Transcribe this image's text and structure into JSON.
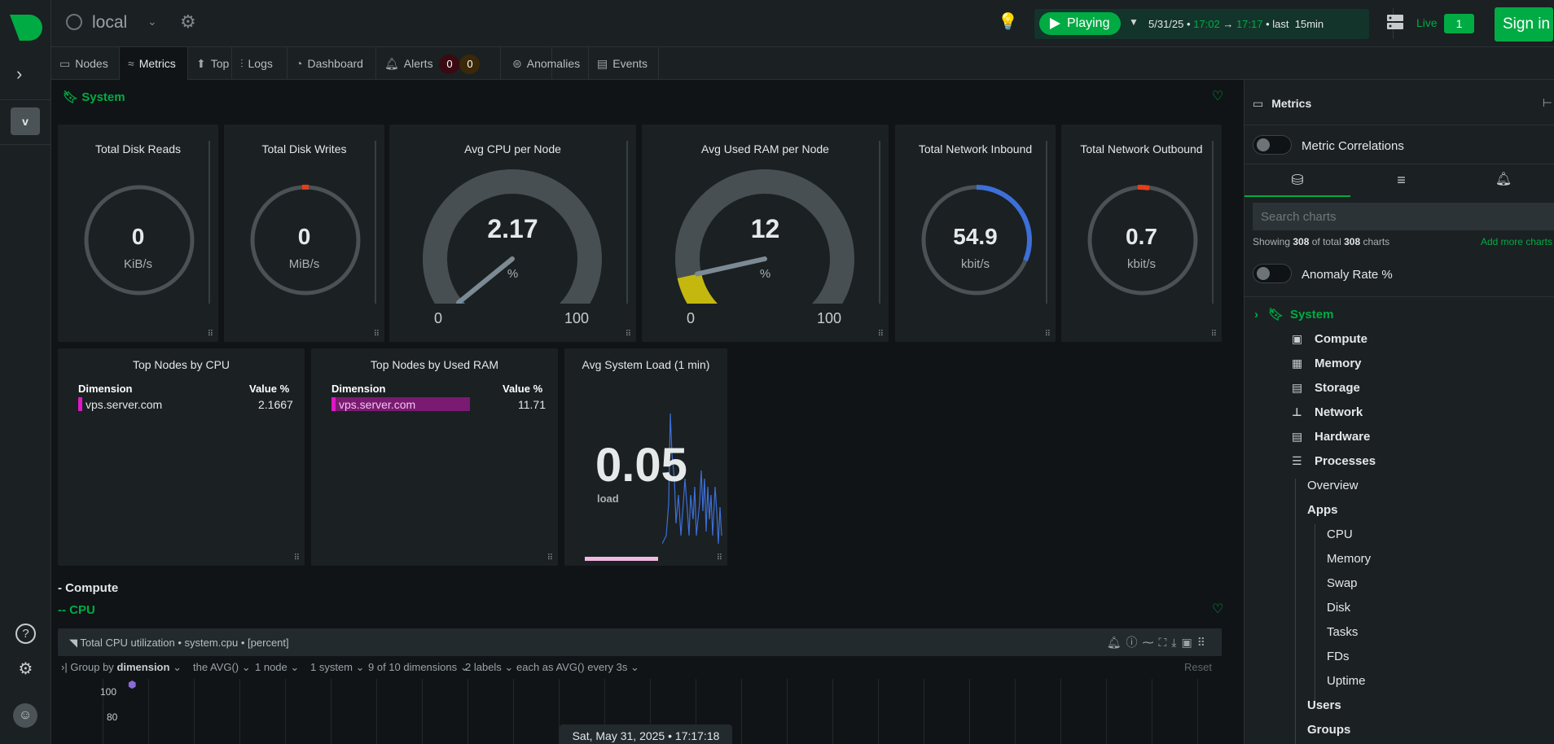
{
  "topbar": {
    "room": "local",
    "playing": "Playing",
    "range_date": "5/31/25",
    "range_from": "17:02",
    "arrow": "→",
    "range_to": "17:17",
    "range_last": "last",
    "range_dur": "15min",
    "live": "Live",
    "live_count": "1",
    "signin": "Sign in"
  },
  "leftbar": {
    "space_initial": "v"
  },
  "tabs": [
    {
      "label": "Nodes"
    },
    {
      "label": "Metrics"
    },
    {
      "label": "Top"
    },
    {
      "label": "Logs"
    },
    {
      "label": "Dashboard"
    },
    {
      "label": "Alerts"
    },
    {
      "label": "Anomalies"
    },
    {
      "label": "Events"
    }
  ],
  "alerts": {
    "critical": "0",
    "warning": "0"
  },
  "main": {
    "section_system": "System",
    "gauges": [
      {
        "title": "Total Disk Reads",
        "value": "0",
        "unit": "KiB/s"
      },
      {
        "title": "Total Disk Writes",
        "value": "0",
        "unit": "MiB/s"
      },
      {
        "title": "Avg CPU per Node",
        "value": "2.17",
        "unit": "%",
        "min": "0",
        "max": "100",
        "fill": 0.0217
      },
      {
        "title": "Avg Used RAM per Node",
        "value": "12",
        "unit": "%",
        "min": "0",
        "max": "100",
        "fill": 0.12
      },
      {
        "title": "Total Network Inbound",
        "value": "54.9",
        "unit": "kbit/s"
      },
      {
        "title": "Total Network Outbound",
        "value": "0.7",
        "unit": "kbit/s"
      }
    ],
    "top_cpu": {
      "title": "Top Nodes by CPU",
      "col1": "Dimension",
      "col2": "Value %",
      "row_name": "vps.server.com",
      "row_value": "2.1667"
    },
    "top_ram": {
      "title": "Top Nodes by Used RAM",
      "col1": "Dimension",
      "col2": "Value %",
      "row_name": "vps.server.com",
      "row_value": "11.71"
    },
    "load": {
      "title": "Avg System Load (1 min)",
      "value": "0.05",
      "unit": "load"
    },
    "section_compute": "- Compute",
    "section_cpu": "-- CPU",
    "cpu_chart": {
      "title": "Total CPU utilization",
      "context": "• system.cpu •",
      "unit": "[percent]",
      "group_by": "Group by",
      "group_by_val": "dimension",
      "agg": "the AVG()",
      "nodes": "1 node",
      "systems": "1 system",
      "dims": "9 of 10 dimensions",
      "labels": "2 labels",
      "each": "each as",
      "each_val": "AVG()",
      "every": "every 3s",
      "reset": "Reset",
      "y100": "100",
      "y80": "80"
    },
    "timestamp": "Sat, May 31, 2025 • 17:17:18"
  },
  "right_panel": {
    "header": "Metrics",
    "metric_correlations": "Metric Correlations",
    "search_placeholder": "Search charts",
    "showing_pre": "Showing",
    "showing_n": "308",
    "showing_mid": "of total",
    "showing_total": "308",
    "showing_post": "charts",
    "add_more": "Add more charts",
    "anomaly_rate": "Anomaly Rate %",
    "tree": [
      {
        "label": "System"
      },
      {
        "label": "Compute"
      },
      {
        "label": "Memory"
      },
      {
        "label": "Storage"
      },
      {
        "label": "Network"
      },
      {
        "label": "Hardware"
      },
      {
        "label": "Processes"
      },
      {
        "label": "Overview"
      },
      {
        "label": "Apps"
      },
      {
        "label": "CPU"
      },
      {
        "label": "Memory"
      },
      {
        "label": "Swap"
      },
      {
        "label": "Disk"
      },
      {
        "label": "Tasks"
      },
      {
        "label": "FDs"
      },
      {
        "label": "Uptime"
      },
      {
        "label": "Users"
      },
      {
        "label": "Groups"
      }
    ]
  }
}
